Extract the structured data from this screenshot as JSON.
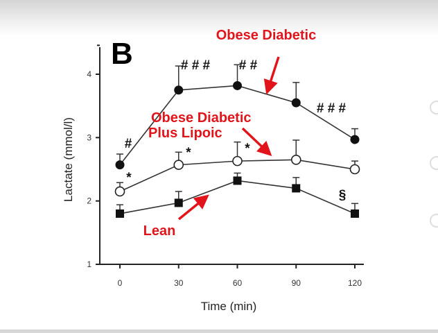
{
  "chart_data": {
    "type": "line",
    "panel_label": "B",
    "xlabel": "Time (min)",
    "ylabel": "Lactate (mmol/l)",
    "x": [
      0,
      30,
      60,
      90,
      120
    ],
    "xlim": [
      0,
      120
    ],
    "ylim": [
      1,
      4.5
    ],
    "x_ticks": [
      "0",
      "30",
      "60",
      "90",
      "120"
    ],
    "y_ticks": [
      "1",
      "2",
      "3",
      "4"
    ],
    "grid": false,
    "series": [
      {
        "name": "Obese Diabetic",
        "marker": "filled-circle",
        "values": [
          2.57,
          3.75,
          3.82,
          3.55,
          2.97
        ],
        "error": [
          0.17,
          0.38,
          0.33,
          0.32,
          0.17
        ],
        "annotations": [
          "#",
          "# # #",
          "# #",
          "",
          "# # #"
        ]
      },
      {
        "name": "Obese Diabetic Plus Lipoic",
        "marker": "open-circle",
        "values": [
          2.15,
          2.57,
          2.63,
          2.65,
          2.5
        ],
        "error": [
          0.14,
          0.2,
          0.3,
          0.31,
          0.13
        ],
        "annotations": [
          "*",
          "*",
          "*",
          "",
          ""
        ]
      },
      {
        "name": "Lean",
        "marker": "filled-square",
        "values": [
          1.8,
          1.97,
          2.32,
          2.2,
          1.8
        ],
        "error": [
          0.14,
          0.18,
          0.12,
          0.17,
          0.16
        ],
        "annotations": [
          "",
          "",
          "",
          "",
          "§"
        ]
      }
    ],
    "series_labels": [
      "Obese Diabetic",
      "Obese Diabetic\nPlus Lipoic",
      "Lean"
    ],
    "label_color": "#e2141b"
  }
}
